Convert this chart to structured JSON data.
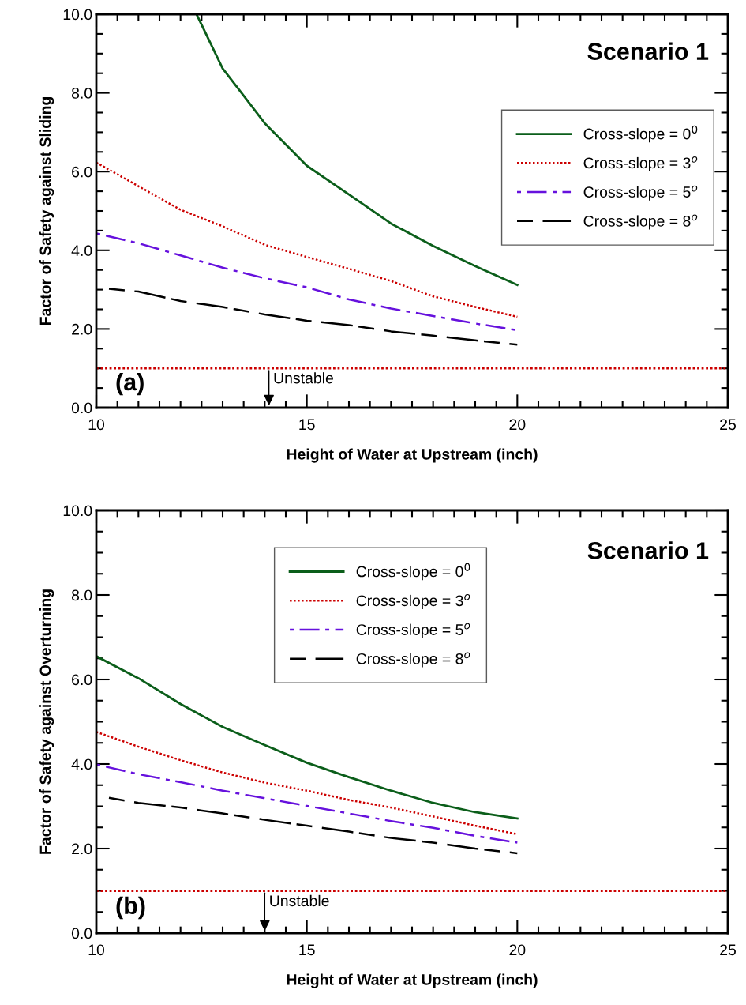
{
  "chart_data": [
    {
      "type": "line",
      "xlabel": "Height of Water at Upstream (inch)",
      "ylabel": "Factor of Safety against Sliding",
      "xlim": [
        10,
        25
      ],
      "xticks": [
        10,
        15,
        20,
        25
      ],
      "ylim": [
        0,
        10
      ],
      "yticks": [
        {
          "value": 0,
          "label": "0.0"
        },
        {
          "value": 2,
          "label": "2.0"
        },
        {
          "value": 4,
          "label": "4.0"
        },
        {
          "value": 6,
          "label": "6.0"
        },
        {
          "value": 8,
          "label": "8.0"
        },
        {
          "value": 10,
          "label": "10.0"
        }
      ],
      "legend": "right",
      "grid": false,
      "series": [
        {
          "name": "Cross-slope = 0$^{0}$",
          "color": "#0b5e1a",
          "line_style": "solid",
          "x": [
            12.38,
            13,
            13.5,
            14,
            15,
            16,
            17,
            18,
            19,
            20
          ],
          "values": [
            10.0,
            8.62,
            7.93,
            7.23,
            6.15,
            5.42,
            4.68,
            4.11,
            3.6,
            3.12
          ]
        },
        {
          "name": "Cross-slope = 3$^{o}$",
          "color": "#cc0000",
          "line_style": "dotted",
          "x": [
            10,
            11,
            12,
            13,
            14,
            15,
            16,
            17,
            18,
            19,
            20
          ],
          "values": [
            6.23,
            5.63,
            5.03,
            4.61,
            4.14,
            3.83,
            3.53,
            3.22,
            2.83,
            2.56,
            2.31
          ]
        },
        {
          "name": "Cross-slope = 5$^{o}$",
          "color": "#6611dd",
          "line_style": "dashdot",
          "x": [
            10,
            11,
            12,
            13,
            14,
            15,
            16,
            17,
            18,
            19,
            20
          ],
          "values": [
            4.43,
            4.18,
            3.87,
            3.56,
            3.29,
            3.06,
            2.75,
            2.52,
            2.33,
            2.14,
            1.97
          ]
        },
        {
          "name": "Cross-slope = 8$^{o}$",
          "color": "#000000",
          "line_style": "dashed",
          "x": [
            10.3,
            11,
            12,
            13,
            14,
            15,
            16,
            17,
            18,
            19,
            20
          ],
          "values": [
            3.02,
            2.95,
            2.71,
            2.56,
            2.37,
            2.21,
            2.1,
            1.94,
            1.83,
            1.71,
            1.6
          ]
        }
      ],
      "ref_lines": [
        {
          "axis": "y",
          "value": 1,
          "color": "#cc0000",
          "line_style": "dotted"
        }
      ],
      "annotations": [
        "Scenario 1",
        "(a)",
        {
          "text": "Unstable",
          "x": 14.1,
          "y": 1
        }
      ]
    },
    {
      "type": "line",
      "xlabel": "Height of Water at Upstream (inch)",
      "ylabel": "Factor of Safety against Overturning",
      "xlim": [
        10,
        25
      ],
      "xticks": [
        10,
        15,
        20,
        25
      ],
      "ylim": [
        0,
        10
      ],
      "yticks": [
        {
          "value": 0,
          "label": "0.0"
        },
        {
          "value": 2,
          "label": "2.0"
        },
        {
          "value": 4,
          "label": "4.0"
        },
        {
          "value": 6,
          "label": "6.0"
        },
        {
          "value": 8,
          "label": "8.0"
        },
        {
          "value": 10,
          "label": "10.0"
        }
      ],
      "legend": "top",
      "grid": false,
      "series": [
        {
          "name": "Cross-slope = 0$^{0}$",
          "color": "#0b5e1a",
          "line_style": "solid",
          "x": [
            10,
            11,
            12,
            13,
            14,
            15,
            16,
            17,
            18,
            19,
            20
          ],
          "values": [
            6.55,
            6.03,
            5.42,
            4.88,
            4.45,
            4.03,
            3.69,
            3.37,
            3.08,
            2.86,
            2.71
          ]
        },
        {
          "name": "Cross-slope = 3$^{o}$",
          "color": "#cc0000",
          "line_style": "dotted",
          "x": [
            10,
            11,
            12,
            13,
            14,
            15,
            16,
            17,
            18,
            19,
            20
          ],
          "values": [
            4.76,
            4.41,
            4.09,
            3.8,
            3.56,
            3.37,
            3.15,
            2.97,
            2.76,
            2.54,
            2.34
          ]
        },
        {
          "name": "Cross-slope = 5$^{o}$",
          "color": "#6611dd",
          "line_style": "dashdot",
          "x": [
            10,
            11,
            12,
            13,
            14,
            15,
            16,
            17,
            18,
            19,
            20
          ],
          "values": [
            3.99,
            3.76,
            3.57,
            3.37,
            3.19,
            3.01,
            2.83,
            2.65,
            2.49,
            2.3,
            2.14
          ]
        },
        {
          "name": "Cross-slope = 8$^{o}$",
          "color": "#000000",
          "line_style": "dashed",
          "x": [
            10.3,
            11,
            12,
            13,
            14,
            15,
            16,
            17,
            18,
            19,
            20
          ],
          "values": [
            3.2,
            3.08,
            2.97,
            2.83,
            2.68,
            2.54,
            2.4,
            2.25,
            2.14,
            2.0,
            1.89
          ]
        }
      ],
      "ref_lines": [
        {
          "axis": "y",
          "value": 1,
          "color": "#cc0000",
          "line_style": "dotted"
        }
      ],
      "annotations": [
        "Scenario 1",
        "(b)",
        {
          "text": "Unstable",
          "x": 14.0,
          "y": 1
        }
      ]
    }
  ]
}
